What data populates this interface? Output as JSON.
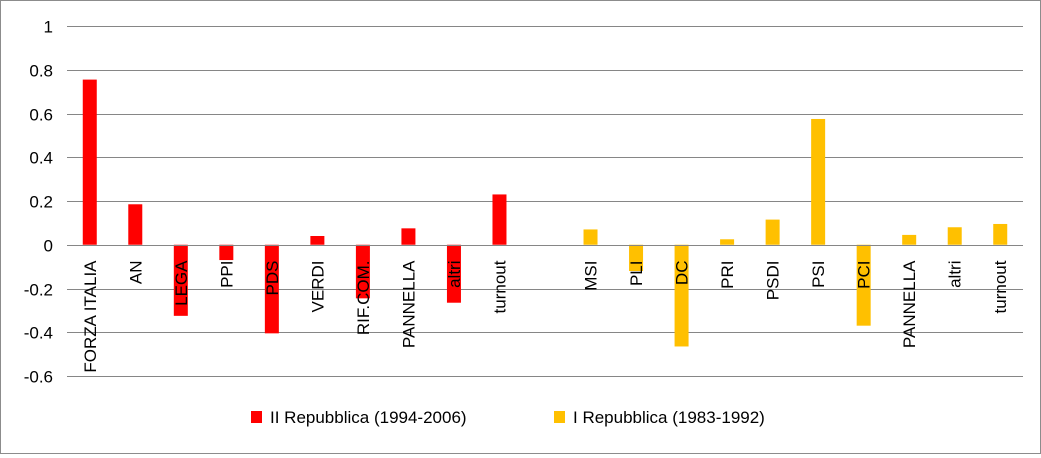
{
  "chart_data": {
    "type": "bar",
    "ylim": [
      -0.6,
      1
    ],
    "yticks": [
      -0.6,
      -0.4,
      -0.2,
      0,
      0.2,
      0.4,
      0.6,
      0.8,
      1
    ],
    "ytick_labels": [
      "-0.6",
      "-0.4",
      "-0.2",
      "0",
      "0.2",
      "0.4",
      "0.6",
      "0.8",
      "1"
    ],
    "grid": true,
    "legend_position": "bottom",
    "categories": [
      "FORZA ITALIA",
      "AN",
      "LEGA",
      "PPI",
      "PDS",
      "VERDI",
      "RIF.COM.",
      "PANNELLA",
      "altri",
      "turnout",
      "",
      "MSI",
      "PLI",
      "DC",
      "PRI",
      "PSDI",
      "PSI",
      "PCI",
      "PANNELLA",
      "altri",
      "turnout"
    ],
    "series": [
      {
        "name": "II Repubblica (1994-2006)",
        "color": "#ff0000",
        "values": [
          0.755,
          0.185,
          -0.325,
          -0.07,
          -0.405,
          0.04,
          -0.245,
          0.075,
          -0.265,
          0.23,
          null,
          null,
          null,
          null,
          null,
          null,
          null,
          null,
          null,
          null,
          null
        ]
      },
      {
        "name": "I Repubblica (1983-1992)",
        "color": "#ffc000",
        "values": [
          null,
          null,
          null,
          null,
          null,
          null,
          null,
          null,
          null,
          null,
          null,
          0.07,
          -0.12,
          -0.465,
          0.025,
          0.115,
          0.575,
          -0.37,
          0.045,
          0.08,
          0.095
        ]
      }
    ]
  }
}
